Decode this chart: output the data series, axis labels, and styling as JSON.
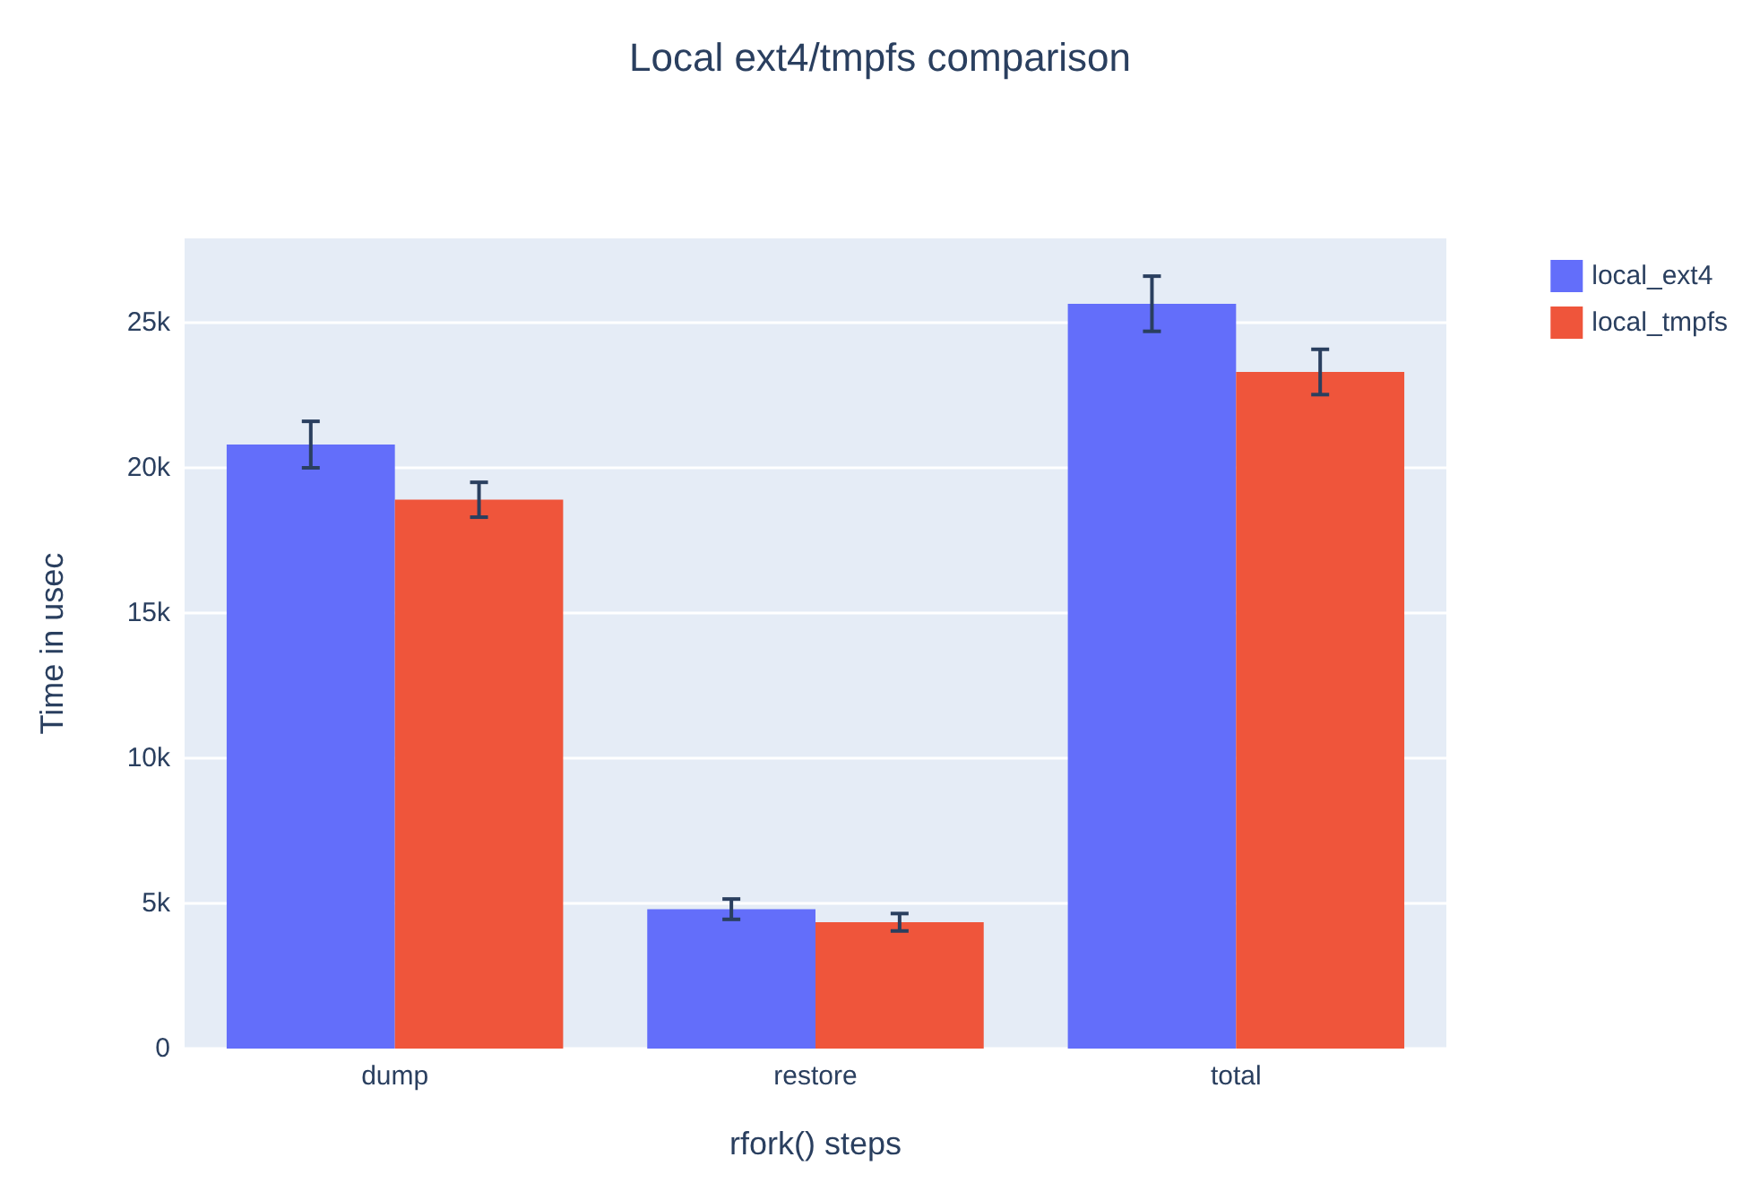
{
  "chart_data": {
    "type": "bar",
    "title": "Local ext4/tmpfs comparison",
    "xlabel": "rfork() steps",
    "ylabel": "Time in usec",
    "categories": [
      "dump",
      "restore",
      "total"
    ],
    "series": [
      {
        "name": "local_ext4",
        "color": "#636efa",
        "values": [
          20800,
          4800,
          25650
        ],
        "errors": [
          800,
          350,
          950
        ]
      },
      {
        "name": "local_tmpfs",
        "color": "#ef553b",
        "values": [
          18900,
          4350,
          23300
        ],
        "errors": [
          600,
          300,
          780
        ]
      }
    ],
    "ylim": [
      0,
      27900
    ],
    "yticks": [
      {
        "value": 0,
        "label": "0"
      },
      {
        "value": 5000,
        "label": "5k"
      },
      {
        "value": 10000,
        "label": "10k"
      },
      {
        "value": 15000,
        "label": "15k"
      },
      {
        "value": 20000,
        "label": "20k"
      },
      {
        "value": 25000,
        "label": "25k"
      }
    ],
    "grid": "y",
    "legend": "top right"
  }
}
